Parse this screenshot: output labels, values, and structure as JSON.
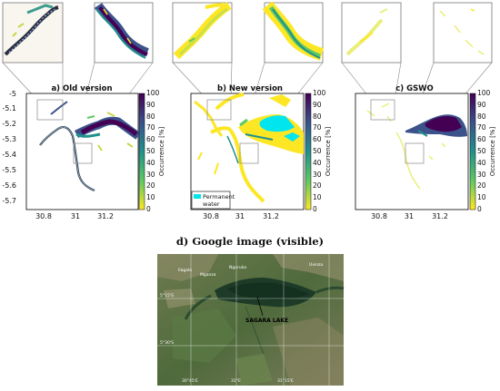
{
  "panels": [
    {
      "id": "a",
      "title": "a) Old version"
    },
    {
      "id": "b",
      "title": "b) New version"
    },
    {
      "id": "c",
      "title": "c) GSWO"
    }
  ],
  "y_ticks": [
    "-5",
    "-5.1",
    "-5.2",
    "-5.3",
    "-5.4",
    "-5.5",
    "-5.6",
    "-5.7"
  ],
  "x_ticks": [
    "30.8",
    "31",
    "31.2"
  ],
  "colorbar": {
    "label": "Occurrence [%]",
    "ticks": [
      "100",
      "90",
      "80",
      "70",
      "60",
      "50",
      "40",
      "30",
      "20",
      "10",
      "0"
    ],
    "colors": [
      "#440154",
      "#3b528b",
      "#21918c",
      "#5ec962",
      "#fde725"
    ]
  },
  "legend": {
    "line1": "Permanent",
    "line2": "water",
    "color": "#00e5ee"
  },
  "google": {
    "title": "d) Google image (visible)",
    "lake_label": "SAGARA LAKE",
    "lat_labels": [
      "5°15'S",
      "5°30'S"
    ],
    "lon_labels": [
      "30°45'E",
      "31°E",
      "31°15'E"
    ],
    "place_labels": [
      "Ilagala",
      "Nguruka",
      "Uvinza",
      "Mganza"
    ]
  }
}
